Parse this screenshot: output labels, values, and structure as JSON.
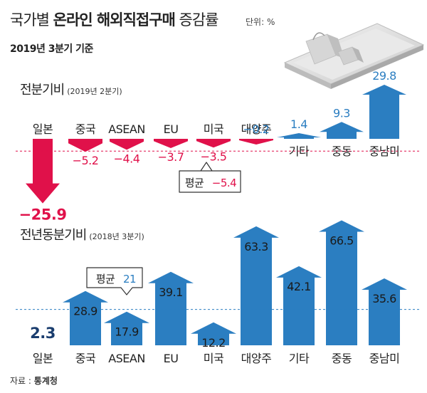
{
  "header": {
    "title_prefix": "국가별",
    "title_highlight": "온라인 해외직접구매",
    "title_suffix": "증감률",
    "unit": "단위: %",
    "subtitle": "2019년 3분기 기준"
  },
  "source": {
    "label": "자료 :",
    "name": "통계청"
  },
  "colors": {
    "positive": "#2b7ec1",
    "negative": "#e0114a",
    "average_line": "#2b7ec1",
    "avg_line_top": "#e0114a"
  },
  "chart_data": [
    {
      "type": "bar",
      "title": "전분기비",
      "subtitle": "(2019년 2분기)",
      "categories": [
        "일본",
        "중국",
        "ASEAN",
        "EU",
        "미국",
        "대양주",
        "기타",
        "중동",
        "중남미"
      ],
      "values": [
        -25.9,
        -5.2,
        -4.4,
        -3.7,
        -3.5,
        -0.2,
        1.4,
        9.3,
        29.8
      ],
      "value_labels": [
        "−25.9",
        "−5.2",
        "−4.4",
        "−3.7",
        "−3.5",
        "−0.2",
        "1.4",
        "9.3",
        "29.8"
      ],
      "average": {
        "label": "평균",
        "value": -5.4,
        "value_label": "−5.4"
      }
    },
    {
      "type": "bar",
      "title": "전년동분기비",
      "subtitle": "(2018년 3분기)",
      "categories": [
        "일본",
        "중국",
        "ASEAN",
        "EU",
        "미국",
        "대양주",
        "기타",
        "중동",
        "중남미"
      ],
      "values": [
        2.3,
        28.9,
        17.9,
        39.1,
        12.2,
        63.3,
        42.1,
        66.5,
        35.6
      ],
      "value_labels": [
        "2.3",
        "28.9",
        "17.9",
        "39.1",
        "12.2",
        "63.3",
        "42.1",
        "66.5",
        "35.6"
      ],
      "average": {
        "label": "평균",
        "value": 21,
        "value_label": "21"
      }
    }
  ]
}
